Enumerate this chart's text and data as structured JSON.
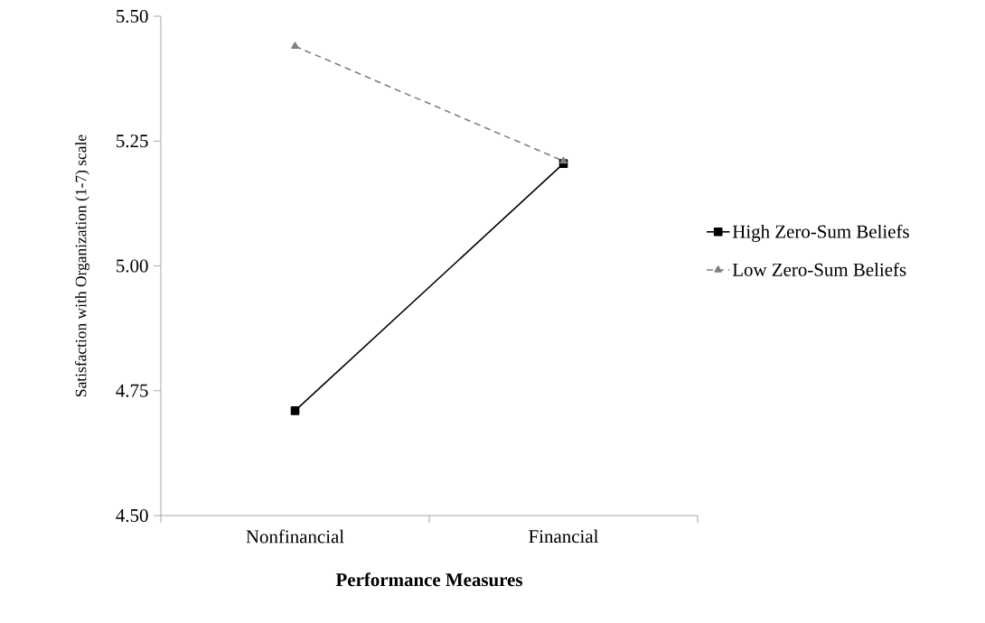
{
  "chart_data": {
    "type": "line",
    "xlabel": "Performance Measures",
    "ylabel": "Satisfaction with Organization (1-7) scale",
    "categories": [
      "Nonfinancial",
      "Financial"
    ],
    "series": [
      {
        "name": "High Zero-Sum Beliefs",
        "color": "#000000",
        "values": [
          4.71,
          5.205
        ],
        "marker": "square",
        "line_style": "solid"
      },
      {
        "name": "Low Zero-Sum Beliefs",
        "color": "#808080",
        "values": [
          5.44,
          5.21
        ],
        "marker": "triangle",
        "line_style": "dashed"
      }
    ],
    "ylim": [
      4.5,
      5.5
    ],
    "yticks": [
      {
        "value": 4.5,
        "label": "4.50"
      },
      {
        "value": 4.75,
        "label": "4.75"
      },
      {
        "value": 5.0,
        "label": "5.00"
      },
      {
        "value": 5.25,
        "label": "5.25"
      },
      {
        "value": 5.5,
        "label": "5.50"
      }
    ],
    "grid": false,
    "legend": "right"
  }
}
